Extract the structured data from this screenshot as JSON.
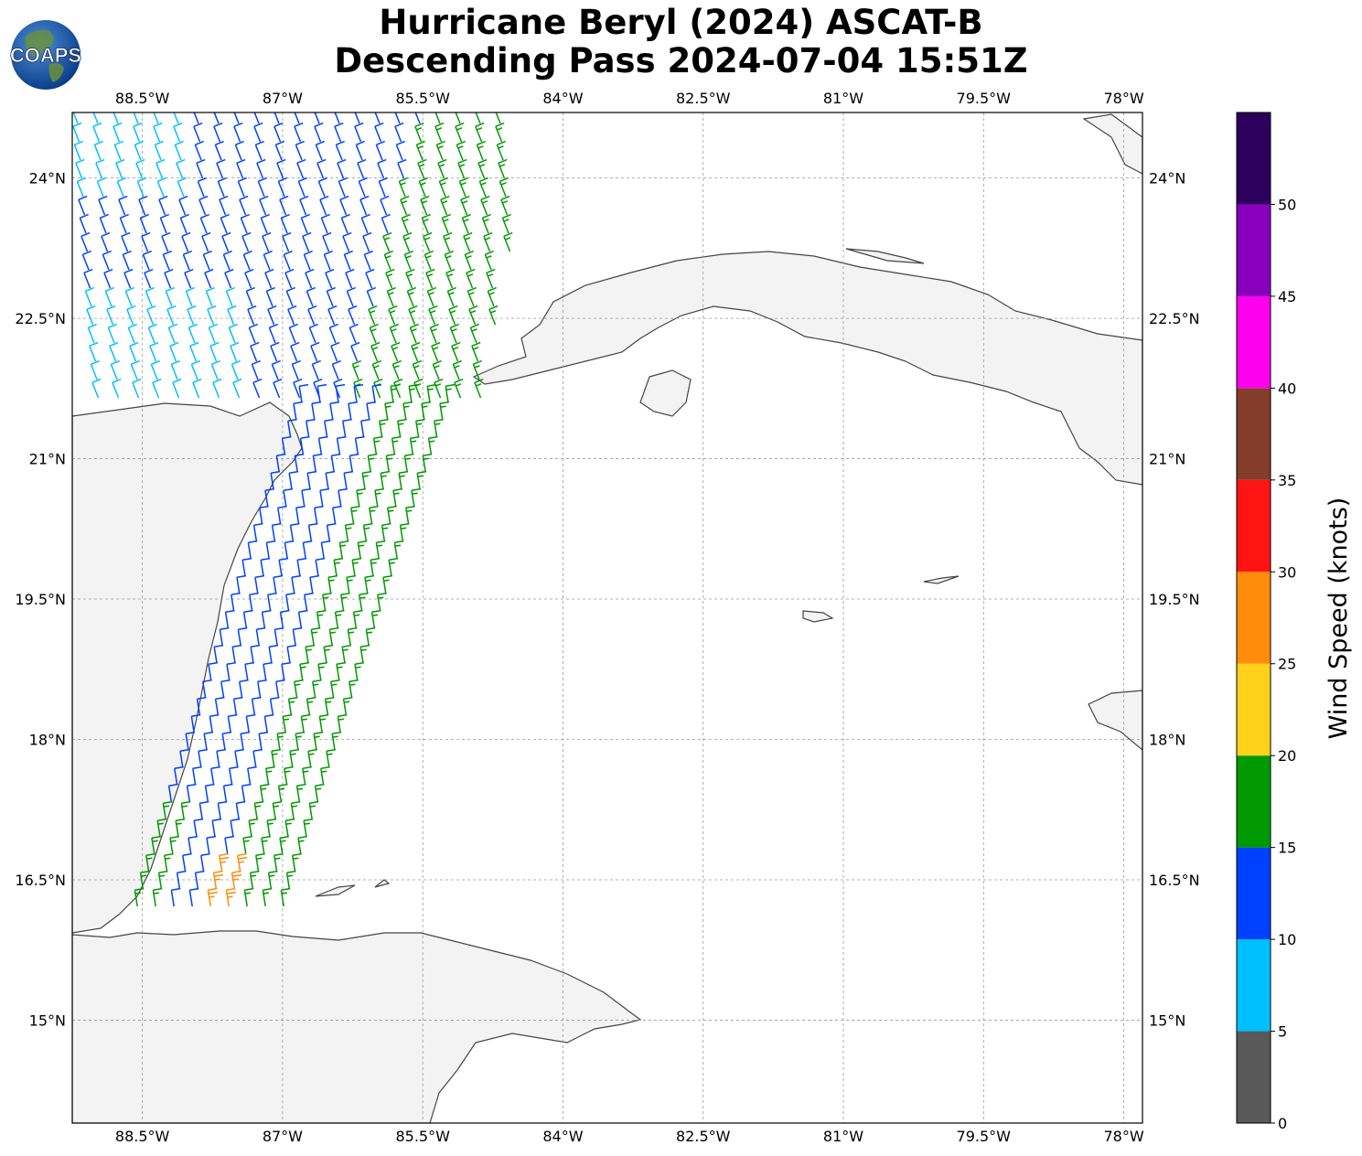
{
  "title": {
    "line1": "Hurricane Beryl (2024) ASCAT-B",
    "line2": "Descending Pass 2024-07-04 15:51Z"
  },
  "logo": {
    "text": "COAPS",
    "icon": "globe-icon"
  },
  "map": {
    "lon_labels": [
      "88.5°W",
      "87°W",
      "85.5°W",
      "84°W",
      "82.5°W",
      "81°W",
      "79.5°W",
      "78°W"
    ],
    "lat_labels": [
      "24°N",
      "22.5°N",
      "21°N",
      "19.5°N",
      "18°N",
      "16.5°N",
      "15°N"
    ],
    "lon_values": [
      -88.5,
      -87,
      -85.5,
      -84,
      -82.5,
      -81,
      -79.5,
      -78
    ],
    "lat_values": [
      24,
      22.5,
      21,
      19.5,
      18,
      16.5,
      15
    ],
    "lon_range": [
      -89.25,
      -77.8
    ],
    "lat_range": [
      13.9,
      24.7
    ],
    "gridlines": true,
    "land_color": "#f4f4f4",
    "coast_color": "#444444"
  },
  "colorbar": {
    "label": "Wind Speed (knots)",
    "tick_labels": [
      "0",
      "5",
      "10",
      "15",
      "20",
      "25",
      "30",
      "35",
      "40",
      "45",
      "50"
    ],
    "bounds": [
      0,
      5,
      10,
      15,
      20,
      25,
      30,
      35,
      40,
      45,
      50,
      55
    ],
    "colors": [
      "#595959",
      "#00bfff",
      "#0040ff",
      "#009900",
      "#ffd11a",
      "#ff8c0a",
      "#ff1414",
      "#843d2a",
      "#ff00ee",
      "#8800bb",
      "#2e005e"
    ]
  },
  "legend_units": "knots"
}
